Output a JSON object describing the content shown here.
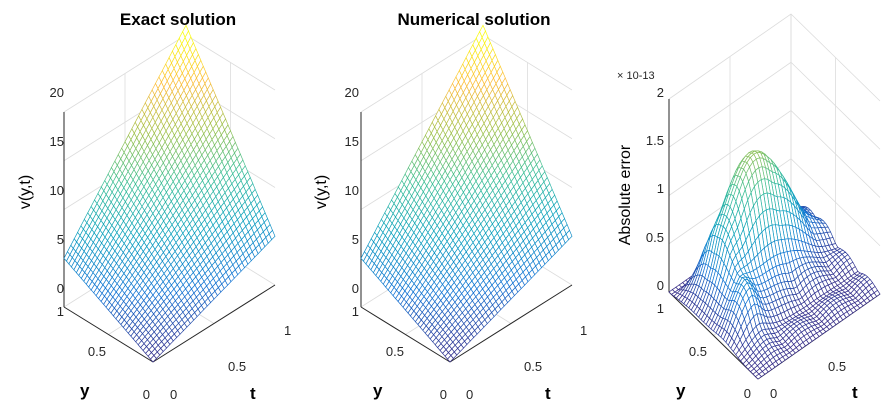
{
  "chart_data": [
    {
      "type": "surface",
      "title": "Exact solution",
      "xlabel": "y",
      "ylabel": "t",
      "zlabel": "v(y,t)",
      "xlim": [
        0,
        1
      ],
      "ylim": [
        0,
        1
      ],
      "zlim": [
        0,
        20
      ],
      "x_ticks": [
        "0",
        "0.5",
        "1"
      ],
      "y_ticks": [
        "0",
        "0.5",
        "1"
      ],
      "z_ticks": [
        "0",
        "5",
        "10",
        "15",
        "20"
      ],
      "corner_values": {
        "y0_t0": 0,
        "y1_t0": 5,
        "y0_t1": 5,
        "y1_t1": 21
      },
      "colormap": "parula",
      "grid": true
    },
    {
      "type": "surface",
      "title": "Numerical solution",
      "xlabel": "y",
      "ylabel": "t",
      "zlabel": "v(y,t)",
      "xlim": [
        0,
        1
      ],
      "ylim": [
        0,
        1
      ],
      "zlim": [
        0,
        20
      ],
      "x_ticks": [
        "0",
        "0.5",
        "1"
      ],
      "y_ticks": [
        "0",
        "0.5",
        "1"
      ],
      "z_ticks": [
        "0",
        "5",
        "10",
        "15",
        "20"
      ],
      "corner_values": {
        "y0_t0": 0,
        "y1_t0": 5,
        "y0_t1": 5,
        "y1_t1": 21
      },
      "colormap": "parula",
      "grid": true
    },
    {
      "type": "surface",
      "title": "",
      "xlabel": "y",
      "ylabel": "t",
      "zlabel": "Absolute error",
      "xlim": [
        0,
        1
      ],
      "ylim": [
        0,
        1
      ],
      "zlim": [
        0,
        2
      ],
      "z_exponent": "× 10-13",
      "x_ticks": [
        "0",
        "0.5",
        "1"
      ],
      "y_ticks": [
        "0",
        "0.5"
      ],
      "z_ticks": [
        "0",
        "0.5",
        "1",
        "1.5",
        "2"
      ],
      "peak_value": 1.5,
      "colormap": "parula",
      "grid": true
    }
  ],
  "colors": {
    "parula_low": "#3e26a8",
    "parula_mid": "#1fc8a9",
    "parula_high": "#f9fb15"
  }
}
